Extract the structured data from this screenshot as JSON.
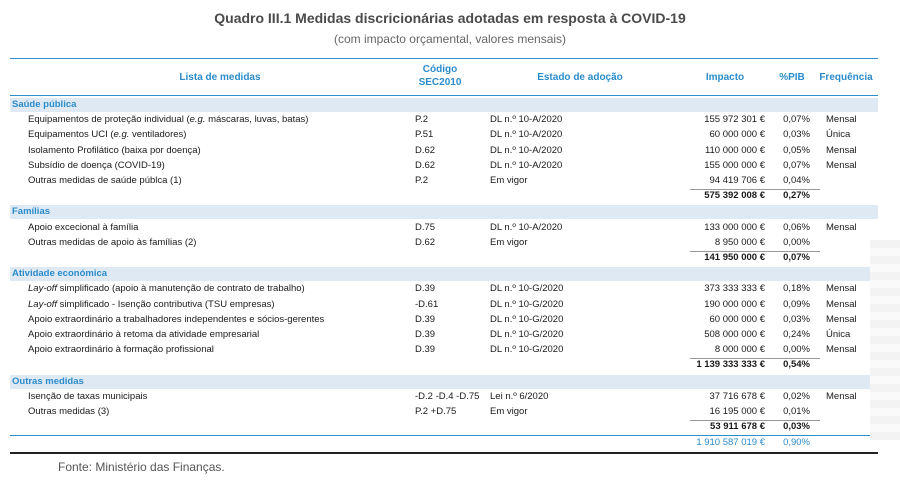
{
  "title": "Quadro III.1 Medidas discricionárias adotadas em resposta à COVID-19",
  "subtitle": "(com impacto orçamental, valores mensais)",
  "headers": {
    "lista": "Lista de medidas",
    "codigo_1": "Código",
    "codigo_2": "SEC2010",
    "estado": "Estado de adoção",
    "impacto": "Impacto",
    "pib": "%PIB",
    "frequencia": "Frequência"
  },
  "sections": [
    {
      "name": "Saúde pública",
      "rows": [
        {
          "medida": "Equipamentos de proteção individual (e.g. máscaras, luvas, batas)",
          "codigo": "P.2",
          "estado": "DL n.º 10-A/2020",
          "impacto": "155 972 301 €",
          "pib": "0,07%",
          "frequencia": "Mensal"
        },
        {
          "medida": "Equipamentos UCI (e.g. ventiladores)",
          "codigo": "P.51",
          "estado": "DL n.º 10-A/2020",
          "impacto": "60 000 000 €",
          "pib": "0,03%",
          "frequencia": "Única"
        },
        {
          "medida": "Isolamento Profilático (baixa por doença)",
          "codigo": "D.62",
          "estado": "DL n.º 10-A/2020",
          "impacto": "110 000 000 €",
          "pib": "0,05%",
          "frequencia": "Mensal"
        },
        {
          "medida": "Subsídio de doença (COVID-19)",
          "codigo": "D.62",
          "estado": "DL n.º 10-A/2020",
          "impacto": "155 000 000 €",
          "pib": "0,07%",
          "frequencia": "Mensal"
        },
        {
          "medida": "Outras medidas de saúde públca (1)",
          "codigo": "P.2",
          "estado": "Em vigor",
          "impacto": "94 419 706 €",
          "pib": "0,04%",
          "frequencia": ""
        }
      ],
      "total": {
        "impacto": "575 392 008 €",
        "pib": "0,27%"
      }
    },
    {
      "name": "Famílias",
      "rows": [
        {
          "medida": "Apoio excecional à família",
          "codigo": "D.75",
          "estado": "DL n.º 10-A/2020",
          "impacto": "133 000 000 €",
          "pib": "0,06%",
          "frequencia": "Mensal"
        },
        {
          "medida": "Outras medidas de apoio às famílias (2)",
          "codigo": "D.62",
          "estado": "Em vigor",
          "impacto": "8 950 000 €",
          "pib": "0,00%",
          "frequencia": ""
        }
      ],
      "total": {
        "impacto": "141 950 000 €",
        "pib": "0,07%"
      }
    },
    {
      "name": "Atividade económica",
      "rows": [
        {
          "medida": "Lay-off simplificado (apoio à manutenção de contrato de trabalho)",
          "codigo": "D.39",
          "estado": "DL n.º 10-G/2020",
          "impacto": "373 333 333 €",
          "pib": "0,18%",
          "frequencia": "Mensal"
        },
        {
          "medida": "Lay-off simplificado - Isenção contributiva (TSU empresas)",
          "codigo": "-D.61",
          "estado": "DL n.º 10-G/2020",
          "impacto": "190 000 000 €",
          "pib": "0,09%",
          "frequencia": "Mensal"
        },
        {
          "medida": "Apoio extraordinário a trabalhadores independentes e sócios-gerentes",
          "codigo": "D.39",
          "estado": "DL n.º 10-G/2020",
          "impacto": "60 000 000 €",
          "pib": "0,03%",
          "frequencia": "Mensal"
        },
        {
          "medida": "Apoio extraordinário à retoma da atividade empresarial",
          "codigo": "D.39",
          "estado": "DL n.º 10-G/2020",
          "impacto": "508 000 000 €",
          "pib": "0,24%",
          "frequencia": "Única"
        },
        {
          "medida": "Apoio extraordinário à formação profissional",
          "codigo": "D.39",
          "estado": "DL n.º 10-G/2020",
          "impacto": "8 000 000 €",
          "pib": "0,00%",
          "frequencia": "Mensal"
        }
      ],
      "total": {
        "impacto": "1 139 333 333 €",
        "pib": "0,54%"
      }
    },
    {
      "name": "Outras medidas",
      "rows": [
        {
          "medida": "Isenção de taxas municipais",
          "codigo": "-D.2 -D.4 -D.75",
          "estado": "Lei n.º 6/2020",
          "impacto": "37 716 678 €",
          "pib": "0,02%",
          "frequencia": "Mensal"
        },
        {
          "medida": "Outras medidas (3)",
          "codigo": "P.2 +D.75",
          "estado": "Em vigor",
          "impacto": "16 195 000 €",
          "pib": "0,01%",
          "frequencia": ""
        }
      ],
      "total": {
        "impacto": "53 911 678 €",
        "pib": "0,03%"
      }
    }
  ],
  "grand_total": {
    "impacto": "1 910 587 019 €",
    "pib": "0,90%"
  },
  "fonte": "Fonte: Ministério das Finanças."
}
